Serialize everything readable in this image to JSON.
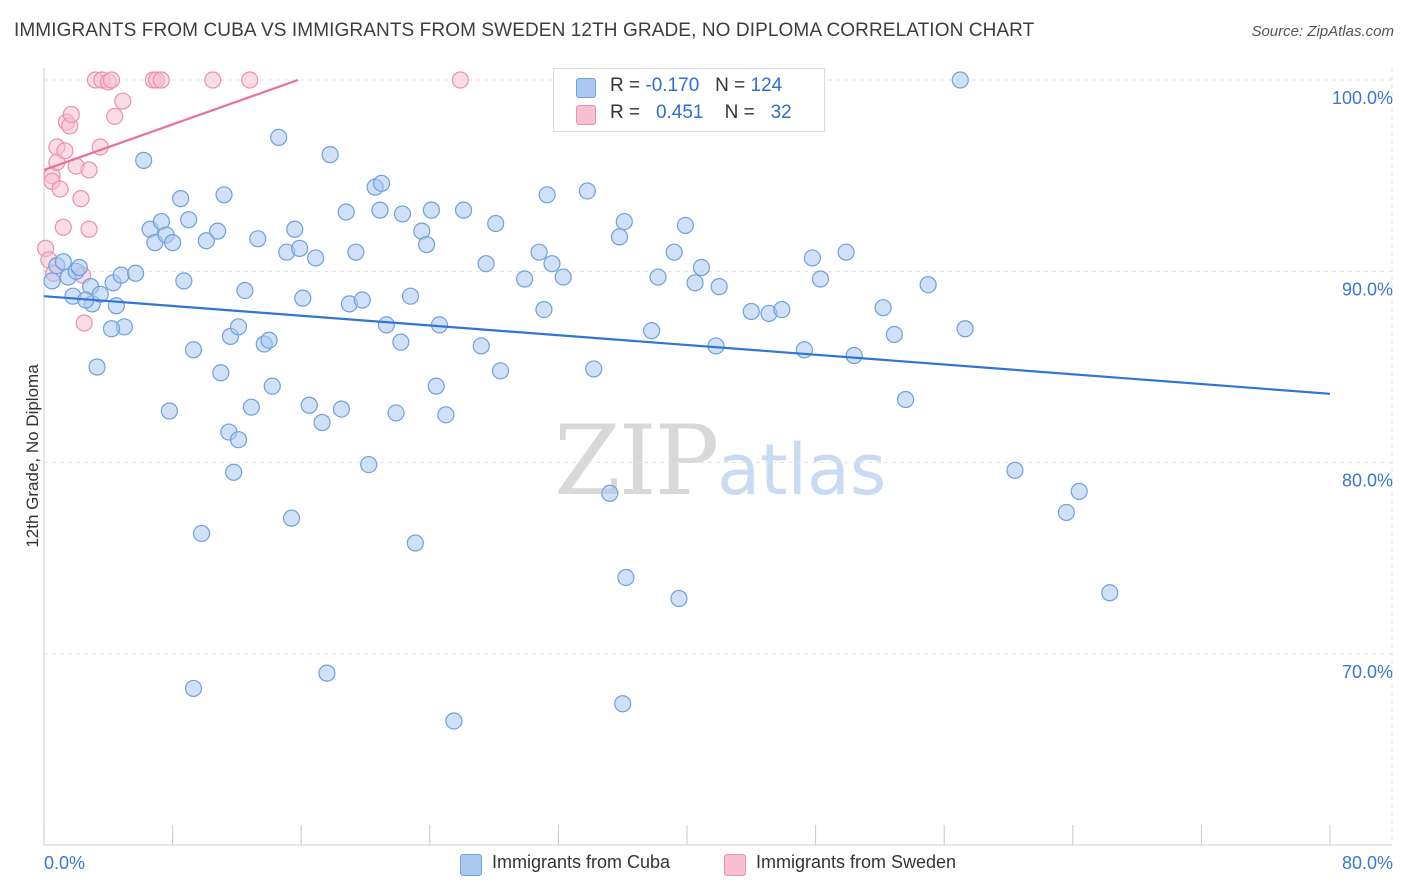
{
  "title": "IMMIGRANTS FROM CUBA VS IMMIGRANTS FROM SWEDEN 12TH GRADE, NO DIPLOMA CORRELATION CHART",
  "source": "Source: ZipAtlas.com",
  "watermark": {
    "zip": "ZIP",
    "atlas": "atlas"
  },
  "legend": {
    "cuba": {
      "r_label": "R =",
      "r_value": "-0.170",
      "n_label": "N =",
      "n_value": "124"
    },
    "sweden": {
      "r_label": "R =",
      "r_value": "0.451",
      "n_label": "N =",
      "n_value": "32"
    }
  },
  "bottom_legend": {
    "cuba": "Immigrants from Cuba",
    "sweden": "Immigrants from Sweden"
  },
  "colors": {
    "cuba_fill": "#aac9f0",
    "cuba_stroke": "#6fa0dc",
    "cuba_line": "#2f75d4",
    "sweden_fill": "#f6bfd3",
    "sweden_stroke": "#ea90b2",
    "sweden_line": "#e8719c",
    "tick_text": "#3a78cf",
    "grid": "#e2e2e2"
  },
  "chart_data": {
    "type": "scatter",
    "title": "IMMIGRANTS FROM CUBA VS IMMIGRANTS FROM SWEDEN 12TH GRADE, NO DIPLOMA CORRELATION CHART",
    "xlabel": "",
    "ylabel": "12th Grade, No Diploma",
    "xlim": [
      0,
      80
    ],
    "ylim": [
      60,
      102
    ],
    "x_tick_labels": [
      "0.0%",
      "80.0%"
    ],
    "y_ticks": [
      70,
      80,
      90,
      100
    ],
    "y_tick_labels": [
      "70.0%",
      "80.0%",
      "90.0%",
      "100.0%"
    ],
    "grid": "horizontal dashed",
    "legend_position": "top-center",
    "series": [
      {
        "name": "Immigrants from Cuba",
        "stats": {
          "R": -0.17,
          "N": 124
        },
        "trend": {
          "x": [
            0,
            80
          ],
          "y": [
            88.7,
            83.6
          ]
        },
        "points": [
          [
            0.5,
            89.5
          ],
          [
            0.8,
            90.3
          ],
          [
            1.2,
            90.5
          ],
          [
            1.5,
            89.7
          ],
          [
            2.0,
            90.0
          ],
          [
            1.8,
            88.7
          ],
          [
            2.9,
            89.2
          ],
          [
            2.2,
            90.2
          ],
          [
            3.0,
            88.3
          ],
          [
            3.5,
            88.8
          ],
          [
            4.3,
            89.4
          ],
          [
            4.5,
            88.2
          ],
          [
            4.8,
            89.8
          ],
          [
            5.0,
            87.1
          ],
          [
            5.7,
            89.9
          ],
          [
            4.2,
            87.0
          ],
          [
            3.3,
            85.0
          ],
          [
            6.2,
            95.8
          ],
          [
            6.6,
            92.2
          ],
          [
            6.9,
            91.5
          ],
          [
            7.3,
            92.6
          ],
          [
            7.6,
            91.9
          ],
          [
            8.0,
            91.5
          ],
          [
            8.5,
            93.8
          ],
          [
            8.7,
            89.5
          ],
          [
            9.0,
            92.7
          ],
          [
            9.3,
            85.9
          ],
          [
            7.8,
            82.7
          ],
          [
            10.1,
            91.6
          ],
          [
            10.8,
            92.1
          ],
          [
            11.2,
            94.0
          ],
          [
            11.6,
            86.6
          ],
          [
            11.0,
            84.7
          ],
          [
            12.1,
            87.1
          ],
          [
            12.5,
            89.0
          ],
          [
            12.9,
            82.9
          ],
          [
            11.5,
            81.6
          ],
          [
            13.3,
            91.7
          ],
          [
            13.7,
            86.2
          ],
          [
            14.0,
            86.4
          ],
          [
            14.2,
            84.0
          ],
          [
            14.6,
            97.0
          ],
          [
            15.1,
            91.0
          ],
          [
            15.6,
            92.2
          ],
          [
            15.9,
            91.2
          ],
          [
            16.1,
            88.6
          ],
          [
            16.5,
            83.0
          ],
          [
            16.9,
            90.7
          ],
          [
            17.3,
            82.1
          ],
          [
            17.8,
            96.1
          ],
          [
            18.5,
            82.8
          ],
          [
            18.8,
            93.1
          ],
          [
            19.0,
            88.3
          ],
          [
            19.4,
            91.0
          ],
          [
            19.8,
            88.5
          ],
          [
            20.2,
            79.9
          ],
          [
            20.6,
            94.4
          ],
          [
            21.0,
            94.6
          ],
          [
            20.9,
            93.2
          ],
          [
            21.3,
            87.2
          ],
          [
            21.9,
            82.6
          ],
          [
            22.3,
            93.0
          ],
          [
            22.8,
            88.7
          ],
          [
            23.1,
            75.8
          ],
          [
            23.5,
            92.1
          ],
          [
            23.8,
            91.4
          ],
          [
            24.1,
            93.2
          ],
          [
            24.4,
            84.0
          ],
          [
            24.6,
            87.2
          ],
          [
            25.0,
            82.5
          ],
          [
            26.1,
            93.2
          ],
          [
            27.2,
            86.1
          ],
          [
            27.5,
            90.4
          ],
          [
            28.1,
            92.5
          ],
          [
            28.4,
            84.8
          ],
          [
            29.9,
            89.6
          ],
          [
            30.8,
            91.0
          ],
          [
            31.1,
            88.0
          ],
          [
            31.3,
            94.0
          ],
          [
            31.6,
            90.4
          ],
          [
            32.3,
            89.7
          ],
          [
            34.2,
            84.9
          ],
          [
            33.8,
            94.2
          ],
          [
            35.8,
            91.8
          ],
          [
            35.2,
            78.4
          ],
          [
            36.1,
            92.6
          ],
          [
            36.2,
            74.0
          ],
          [
            37.8,
            86.9
          ],
          [
            38.2,
            89.7
          ],
          [
            39.2,
            91.0
          ],
          [
            39.5,
            72.9
          ],
          [
            39.9,
            92.4
          ],
          [
            40.5,
            89.4
          ],
          [
            40.9,
            90.2
          ],
          [
            42.0,
            89.2
          ],
          [
            41.8,
            86.1
          ],
          [
            44.0,
            87.9
          ],
          [
            45.1,
            87.8
          ],
          [
            45.9,
            88.0
          ],
          [
            47.3,
            85.9
          ],
          [
            47.8,
            90.7
          ],
          [
            48.3,
            89.6
          ],
          [
            49.9,
            91.0
          ],
          [
            50.4,
            85.6
          ],
          [
            52.2,
            88.1
          ],
          [
            52.9,
            86.7
          ],
          [
            53.6,
            83.3
          ],
          [
            55.0,
            89.3
          ],
          [
            57.3,
            87.0
          ],
          [
            60.4,
            79.6
          ],
          [
            63.6,
            77.4
          ],
          [
            64.4,
            78.5
          ],
          [
            66.3,
            73.2
          ],
          [
            57.0,
            100.0
          ],
          [
            9.3,
            68.2
          ],
          [
            17.6,
            69.0
          ],
          [
            25.5,
            66.5
          ],
          [
            36.0,
            67.4
          ],
          [
            9.8,
            76.3
          ],
          [
            15.4,
            77.1
          ],
          [
            11.8,
            79.5
          ],
          [
            12.1,
            81.2
          ],
          [
            22.2,
            86.3
          ],
          [
            2.6,
            88.5
          ]
        ]
      },
      {
        "name": "Immigrants from Sweden",
        "stats": {
          "R": 0.451,
          "N": 32
        },
        "trend": {
          "x": [
            0,
            15.8
          ],
          "y": [
            95.3,
            100.0
          ]
        },
        "points": [
          [
            0.1,
            91.2
          ],
          [
            0.3,
            90.6
          ],
          [
            0.5,
            95.0
          ],
          [
            0.5,
            94.7
          ],
          [
            0.8,
            95.7
          ],
          [
            0.8,
            96.5
          ],
          [
            1.0,
            94.3
          ],
          [
            1.3,
            96.3
          ],
          [
            1.4,
            97.8
          ],
          [
            1.6,
            97.6
          ],
          [
            1.7,
            98.2
          ],
          [
            2.0,
            95.5
          ],
          [
            2.3,
            93.8
          ],
          [
            2.4,
            89.8
          ],
          [
            2.5,
            87.3
          ],
          [
            2.8,
            92.2
          ],
          [
            2.8,
            95.3
          ],
          [
            3.2,
            100.0
          ],
          [
            3.5,
            96.5
          ],
          [
            3.6,
            100.0
          ],
          [
            4.0,
            99.9
          ],
          [
            4.2,
            100.0
          ],
          [
            4.4,
            98.1
          ],
          [
            4.9,
            98.9
          ],
          [
            6.8,
            100.0
          ],
          [
            7.0,
            100.0
          ],
          [
            7.3,
            100.0
          ],
          [
            10.5,
            100.0
          ],
          [
            12.8,
            100.0
          ],
          [
            25.9,
            100.0
          ],
          [
            1.2,
            92.3
          ],
          [
            0.6,
            89.9
          ]
        ]
      }
    ]
  }
}
